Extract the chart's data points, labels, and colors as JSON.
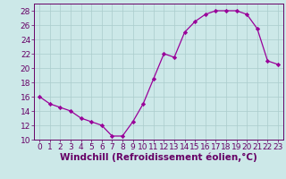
{
  "x": [
    0,
    1,
    2,
    3,
    4,
    5,
    6,
    7,
    8,
    9,
    10,
    11,
    12,
    13,
    14,
    15,
    16,
    17,
    18,
    19,
    20,
    21,
    22,
    23
  ],
  "y": [
    16,
    15,
    14.5,
    14,
    13,
    12.5,
    12,
    10.5,
    10.5,
    12.5,
    15,
    18.5,
    22,
    21.5,
    25,
    26.5,
    27.5,
    28,
    28,
    28,
    27.5,
    25.5,
    21,
    20.5
  ],
  "line_color": "#990099",
  "marker": "D",
  "marker_size": 2.2,
  "bg_color": "#cce8e8",
  "grid_color": "#aacccc",
  "xlabel": "Windchill (Refroidissement éolien,°C)",
  "ylim": [
    10,
    29
  ],
  "xlim": [
    -0.5,
    23.5
  ],
  "yticks": [
    10,
    12,
    14,
    16,
    18,
    20,
    22,
    24,
    26,
    28
  ],
  "xticks": [
    0,
    1,
    2,
    3,
    4,
    5,
    6,
    7,
    8,
    9,
    10,
    11,
    12,
    13,
    14,
    15,
    16,
    17,
    18,
    19,
    20,
    21,
    22,
    23
  ],
  "axis_color": "#660066",
  "tick_color": "#660066",
  "label_color": "#660066",
  "font_size": 6.5,
  "xlabel_fontsize": 7.5
}
